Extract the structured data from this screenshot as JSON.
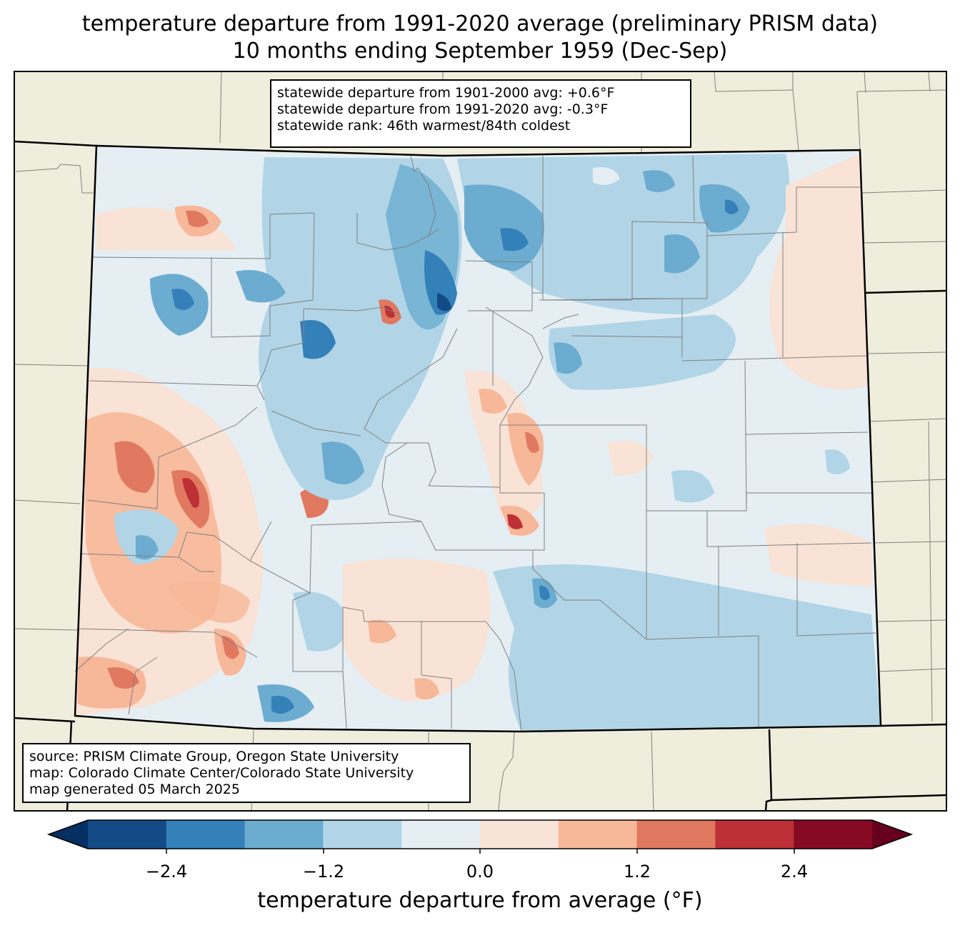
{
  "title": {
    "line1": "temperature departure from 1991-2020 average (preliminary PRISM data)",
    "line2": "10 months ending September 1959 (Dec-Sep)"
  },
  "stats": {
    "line1": "statewide departure from 1901-2000 avg: +0.6°F",
    "line2": "statewide departure from 1991-2020 avg: -0.3°F",
    "line3": "statewide rank: 46th warmest/84th coldest"
  },
  "credits": {
    "line1": "source: PRISM Climate Group, Oregon State University",
    "line2": "map: Colorado Climate Center/Colorado State University",
    "line3": "map generated 05 March 2025"
  },
  "colorbar": {
    "label": "temperature departure from average (°F)",
    "ticks": [
      "−2.4",
      "−1.2",
      "0.0",
      "1.2",
      "2.4"
    ],
    "levels": [
      -3.0,
      -2.4,
      -1.8,
      -1.2,
      -0.6,
      0.0,
      0.6,
      1.2,
      1.8,
      2.4,
      3.0
    ],
    "colors": [
      "#053061",
      "#134b87",
      "#3480b9",
      "#6bacd0",
      "#b1d5e7",
      "#e5eef3",
      "#f9e3d6",
      "#f7b799",
      "#e17860",
      "#bd3036",
      "#870a24",
      "#67001f"
    ]
  },
  "map": {
    "land_color": "#efeedc",
    "state_border_color": "#000000",
    "county_border_color": "#808080"
  }
}
